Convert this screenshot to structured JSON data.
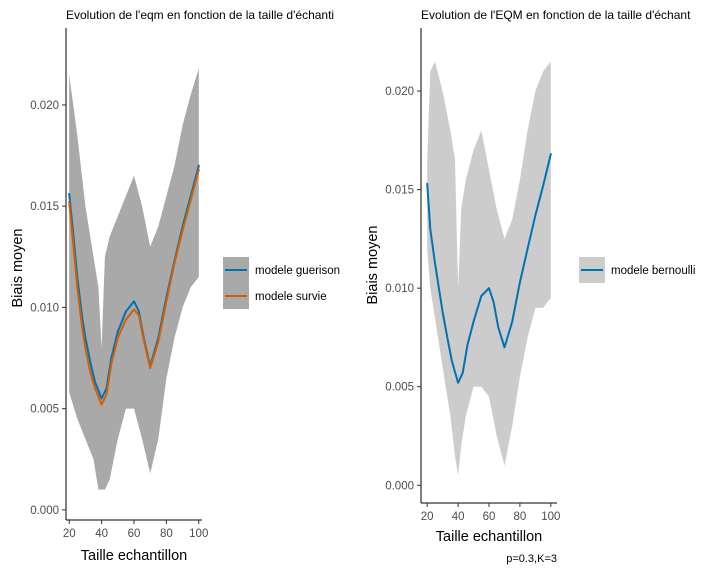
{
  "chart_data": [
    {
      "type": "line",
      "title": "Evolution de l'eqm en fonction de la taille d'échanti",
      "xlabel": "Taille echantillon",
      "ylabel": "Biais moyen",
      "xlim": [
        18,
        102
      ],
      "ylim": [
        -0.0005,
        0.0238
      ],
      "x_ticks": [
        20,
        40,
        60,
        80,
        100
      ],
      "x_tick_labels": [
        "20",
        "40",
        "60",
        "80",
        "100"
      ],
      "y_ticks": [
        0.0,
        0.005,
        0.01,
        0.015,
        0.02
      ],
      "y_tick_labels": [
        "0.000",
        "0.005",
        "0.010",
        "0.015",
        "0.020"
      ],
      "grid": false,
      "legend_position": "right",
      "band_color": "#a9a9a9",
      "band": {
        "x": [
          20,
          25,
          30,
          35,
          38,
          40,
          42,
          45,
          50,
          55,
          60,
          65,
          70,
          75,
          80,
          85,
          90,
          95,
          100
        ],
        "upper": [
          0.0215,
          0.0185,
          0.015,
          0.0125,
          0.011,
          0.008,
          0.0125,
          0.0135,
          0.0145,
          0.0155,
          0.0165,
          0.015,
          0.013,
          0.014,
          0.0155,
          0.017,
          0.019,
          0.0205,
          0.0218
        ],
        "lower": [
          0.0058,
          0.0045,
          0.0035,
          0.0025,
          0.001,
          0.001,
          0.001,
          0.0015,
          0.0035,
          0.005,
          0.005,
          0.0035,
          0.0018,
          0.0035,
          0.0065,
          0.0085,
          0.01,
          0.011,
          0.0115
        ]
      },
      "series": [
        {
          "name": "modele guerison",
          "color": "#0072b2",
          "x": [
            20,
            22,
            25,
            28,
            30,
            33,
            36,
            40,
            43,
            46,
            50,
            55,
            60,
            63,
            66,
            70,
            75,
            80,
            85,
            90,
            95,
            100
          ],
          "values": [
            0.0156,
            0.014,
            0.0115,
            0.0095,
            0.0085,
            0.0073,
            0.0063,
            0.0055,
            0.006,
            0.0075,
            0.0088,
            0.0098,
            0.0103,
            0.0098,
            0.0085,
            0.0071,
            0.0085,
            0.0105,
            0.0123,
            0.014,
            0.0155,
            0.017
          ]
        },
        {
          "name": "modele survie",
          "color": "#d55e00",
          "x": [
            20,
            22,
            25,
            28,
            30,
            33,
            36,
            40,
            43,
            46,
            50,
            55,
            60,
            63,
            66,
            70,
            75,
            80,
            85,
            90,
            95,
            100
          ],
          "values": [
            0.0152,
            0.0135,
            0.011,
            0.009,
            0.008,
            0.0068,
            0.006,
            0.0052,
            0.0057,
            0.0072,
            0.0085,
            0.0094,
            0.0099,
            0.0096,
            0.0084,
            0.007,
            0.0083,
            0.0103,
            0.0122,
            0.0138,
            0.0153,
            0.0168
          ]
        }
      ]
    },
    {
      "type": "line",
      "title": "Evolution de l'EQM en fonction de la taille d'échant",
      "xlabel": "Taille echantillon",
      "ylabel": "Biais moyen",
      "caption": "p=0.3,K=3",
      "xlim": [
        16,
        104
      ],
      "ylim": [
        -0.0009,
        0.0232
      ],
      "x_ticks": [
        20,
        40,
        60,
        80,
        100
      ],
      "x_tick_labels": [
        "20",
        "40",
        "60",
        "80",
        "100"
      ],
      "y_ticks": [
        0.0,
        0.005,
        0.01,
        0.015,
        0.02
      ],
      "y_tick_labels": [
        "0.000",
        "0.005",
        "0.010",
        "0.015",
        "0.020"
      ],
      "grid": false,
      "legend_position": "right",
      "band_color": "#cccccc",
      "band": {
        "x": [
          20,
          22,
          25,
          30,
          35,
          38,
          40,
          42,
          45,
          50,
          55,
          60,
          65,
          70,
          75,
          80,
          85,
          90,
          95,
          100
        ],
        "upper": [
          0.0165,
          0.021,
          0.0215,
          0.02,
          0.018,
          0.0165,
          0.01,
          0.014,
          0.0155,
          0.017,
          0.018,
          0.016,
          0.014,
          0.0125,
          0.0135,
          0.0155,
          0.018,
          0.02,
          0.021,
          0.0215
        ],
        "lower": [
          0.012,
          0.01,
          0.0085,
          0.006,
          0.0035,
          0.0015,
          0.0005,
          0.002,
          0.0035,
          0.005,
          0.005,
          0.0045,
          0.0025,
          0.001,
          0.003,
          0.0055,
          0.0075,
          0.009,
          0.009,
          0.0095
        ]
      },
      "series": [
        {
          "name": "modele bernoulli",
          "color": "#0072b2",
          "x": [
            20,
            22,
            25,
            28,
            30,
            33,
            36,
            40,
            43,
            46,
            50,
            55,
            60,
            63,
            66,
            70,
            75,
            80,
            85,
            90,
            95,
            100
          ],
          "values": [
            0.0153,
            0.013,
            0.0113,
            0.0098,
            0.0088,
            0.0075,
            0.0063,
            0.0052,
            0.0057,
            0.0071,
            0.0083,
            0.0096,
            0.01,
            0.0093,
            0.008,
            0.007,
            0.0083,
            0.0103,
            0.012,
            0.0137,
            0.0152,
            0.0168
          ]
        }
      ]
    }
  ]
}
